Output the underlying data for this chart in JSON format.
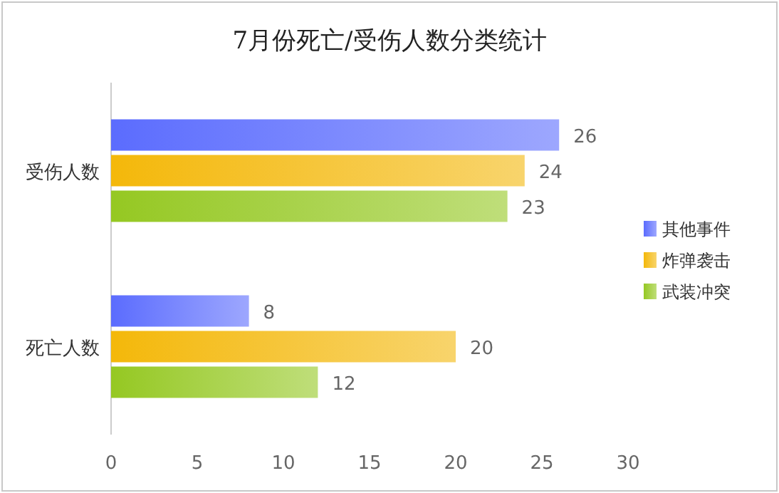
{
  "chart_data": {
    "type": "bar",
    "orientation": "horizontal",
    "title": "7月份死亡/受伤人数分类统计",
    "categories": [
      "受伤人数",
      "死亡人数"
    ],
    "series": [
      {
        "name": "其他事件",
        "color": "#5b6cfe",
        "values": [
          26,
          8
        ]
      },
      {
        "name": "炸弹袭击",
        "color": "#f4b80a",
        "values": [
          24,
          20
        ]
      },
      {
        "name": "武装冲突",
        "color": "#95c822",
        "values": [
          23,
          12
        ]
      }
    ],
    "xlim": [
      0,
      30
    ],
    "xticks": [
      0,
      5,
      10,
      15,
      20,
      25,
      30
    ],
    "data_labels": true,
    "legend": "right",
    "grid": false
  }
}
